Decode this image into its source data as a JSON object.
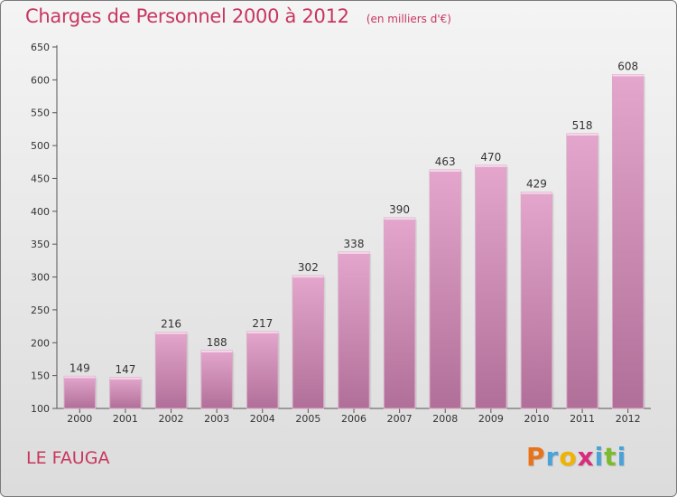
{
  "header": {
    "title": "Charges de Personnel 2000 à 2012",
    "subtitle": "(en milliers d'€)"
  },
  "footer": {
    "commune": "LE FAUGA",
    "logo_letters": [
      "P",
      "r",
      "o",
      "x",
      "i",
      "t",
      "i"
    ],
    "logo_colors": [
      "#e8731a",
      "#4aa3d8",
      "#f0b400",
      "#d92b7c",
      "#4aa3d8",
      "#7dbb2e",
      "#4aa3d8"
    ]
  },
  "colors": {
    "bar_top": "#e4a6cc",
    "bar_bottom": "#b06f98",
    "title": "#c8365f"
  },
  "chart_data": {
    "type": "bar",
    "categories": [
      "2000",
      "2001",
      "2002",
      "2003",
      "2004",
      "2005",
      "2006",
      "2007",
      "2008",
      "2009",
      "2010",
      "2011",
      "2012"
    ],
    "values": [
      149,
      147,
      216,
      188,
      217,
      302,
      338,
      390,
      463,
      470,
      429,
      518,
      608
    ],
    "title": "Charges de Personnel 2000 à 2012",
    "subtitle": "(en milliers d'€)",
    "ylim": [
      100,
      650
    ],
    "yticks": [
      100,
      150,
      200,
      250,
      300,
      350,
      400,
      450,
      500,
      550,
      600,
      650
    ],
    "grid": false
  }
}
